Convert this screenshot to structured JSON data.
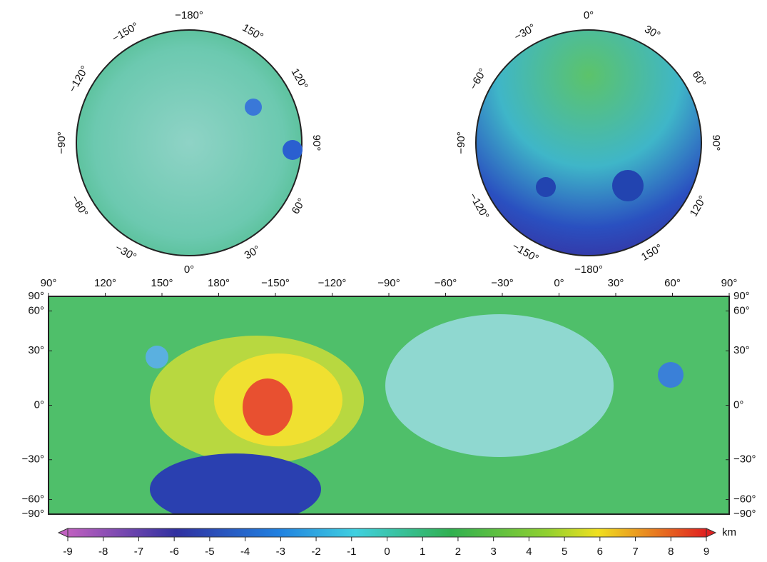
{
  "north_polar": {
    "labels": [
      "−180°",
      "150°",
      "120°",
      "90°",
      "60°",
      "30°",
      "0°",
      "−30°",
      "−60°",
      "−90°",
      "−120°",
      "−150°"
    ]
  },
  "south_polar": {
    "labels": [
      "0°",
      "30°",
      "60°",
      "90°",
      "120°",
      "150°",
      "−180°",
      "−150°",
      "−120°",
      "−90°",
      "−60°",
      "−30°"
    ]
  },
  "global_map": {
    "x_labels": [
      "90°",
      "120°",
      "150°",
      "180°",
      "−150°",
      "−120°",
      "−90°",
      "−60°",
      "−30°",
      "0°",
      "30°",
      "60°",
      "90°"
    ],
    "yticks": [
      {
        "value": 90,
        "label": "90°"
      },
      {
        "value": 60,
        "label": "60°"
      },
      {
        "value": 30,
        "label": "30°"
      },
      {
        "value": 0,
        "label": "0°"
      },
      {
        "value": -30,
        "label": "−30°"
      },
      {
        "value": -60,
        "label": "−60°"
      },
      {
        "value": -90,
        "label": "−90°"
      }
    ]
  },
  "colorbar": {
    "lim": [
      -9,
      9
    ],
    "ticks": [
      -9,
      -8,
      -7,
      -6,
      -5,
      -4,
      -3,
      -2,
      -1,
      0,
      1,
      2,
      3,
      4,
      5,
      6,
      7,
      8,
      9
    ],
    "unit": "km"
  }
}
